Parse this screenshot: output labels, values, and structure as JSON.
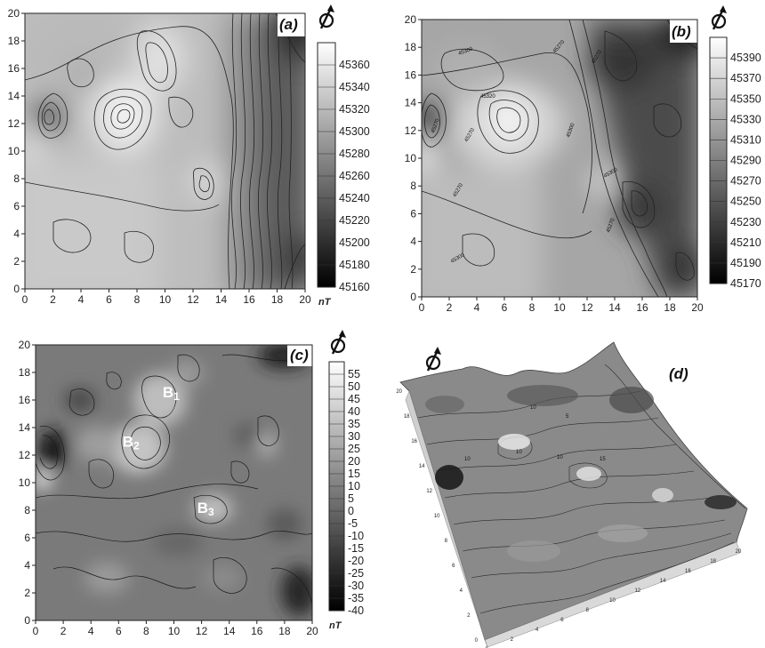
{
  "panels": [
    {
      "label": "(a)",
      "type": "heatmap",
      "x_ticks": [
        "0",
        "2",
        "4",
        "6",
        "8",
        "10",
        "12",
        "14",
        "16",
        "18",
        "20"
      ],
      "y_ticks": [
        "0",
        "2",
        "4",
        "6",
        "8",
        "10",
        "12",
        "14",
        "16",
        "18",
        "20"
      ],
      "xlim": [
        0,
        20
      ],
      "ylim": [
        0,
        20
      ],
      "colorbar": {
        "ticks": [
          "45360",
          "45340",
          "45320",
          "45300",
          "45280",
          "45260",
          "45240",
          "45220",
          "45200",
          "45180",
          "45160"
        ],
        "unit": "nT",
        "range": [
          45160,
          45370
        ]
      },
      "north_arrow": true
    },
    {
      "label": "(b)",
      "type": "heatmap",
      "x_ticks": [
        "0",
        "2",
        "4",
        "6",
        "8",
        "10",
        "12",
        "14",
        "16",
        "18",
        "20"
      ],
      "y_ticks": [
        "0",
        "2",
        "4",
        "6",
        "8",
        "10",
        "12",
        "14",
        "16",
        "18",
        "20"
      ],
      "xlim": [
        0,
        20
      ],
      "ylim": [
        0,
        20
      ],
      "colorbar": {
        "ticks": [
          "45390",
          "45370",
          "45350",
          "45330",
          "45310",
          "45290",
          "45270",
          "45250",
          "45230",
          "45210",
          "45190",
          "45170"
        ],
        "unit": "",
        "range": [
          45170,
          45400
        ]
      },
      "contour_labels": [
        "45300",
        "45270",
        "45270",
        "45320",
        "45270",
        "45270",
        "45300",
        "45270",
        "45270",
        "45300",
        "45300"
      ],
      "north_arrow": true
    },
    {
      "label": "(c)",
      "type": "heatmap",
      "x_ticks": [
        "0",
        "2",
        "4",
        "6",
        "8",
        "10",
        "12",
        "14",
        "16",
        "18",
        "20"
      ],
      "y_ticks": [
        "0",
        "2",
        "4",
        "6",
        "8",
        "10",
        "12",
        "14",
        "16",
        "18",
        "20"
      ],
      "xlim": [
        0,
        20
      ],
      "ylim": [
        0,
        20
      ],
      "colorbar": {
        "ticks": [
          "55",
          "50",
          "45",
          "40",
          "35",
          "30",
          "25",
          "20",
          "15",
          "10",
          "5",
          "0",
          "-5",
          "-10",
          "-15",
          "-20",
          "-25",
          "-30",
          "-35",
          "-40"
        ],
        "unit": "nT",
        "range": [
          -40,
          60
        ]
      },
      "anomalies": [
        {
          "main": "B",
          "sub": "1",
          "x": 9.8,
          "y": 16.2
        },
        {
          "main": "B",
          "sub": "2",
          "x": 6.9,
          "y": 12.6
        },
        {
          "main": "B",
          "sub": "3",
          "x": 12.3,
          "y": 7.8
        }
      ],
      "north_arrow": true
    },
    {
      "label": "(d)",
      "type": "surface",
      "x_ticks": [
        "0",
        "2",
        "4",
        "6",
        "8",
        "10",
        "12",
        "14",
        "16",
        "18",
        "20"
      ],
      "y_ticks": [
        "0",
        "2",
        "4",
        "6",
        "8",
        "10",
        "12",
        "14",
        "16",
        "18",
        "20"
      ],
      "contour_labels": [
        "10",
        "10",
        "10",
        "15",
        "10",
        "5"
      ],
      "north_arrow": true
    }
  ]
}
